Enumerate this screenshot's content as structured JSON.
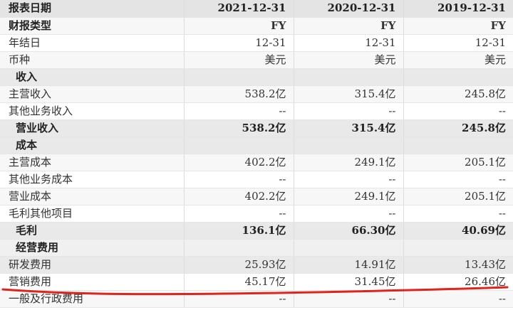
{
  "header": {
    "label": "报表日期",
    "col1": "2021-12-31",
    "col2": "2020-12-31",
    "col3": "2019-12-31"
  },
  "rows": [
    {
      "label": "财报类型",
      "v1": "FY",
      "v2": "FY",
      "v3": "FY"
    },
    {
      "label": "年结日",
      "v1": "12-31",
      "v2": "12-31",
      "v3": "12-31"
    },
    {
      "label": "币种",
      "v1": "美元",
      "v2": "美元",
      "v3": "美元"
    },
    {
      "label": "收入",
      "v1": "",
      "v2": "",
      "v3": ""
    },
    {
      "label": "主营收入",
      "v1": "538.2亿",
      "v2": "315.4亿",
      "v3": "245.8亿"
    },
    {
      "label": "其他业务收入",
      "v1": "--",
      "v2": "--",
      "v3": "--"
    },
    {
      "label": "营业收入",
      "v1": "538.2亿",
      "v2": "315.4亿",
      "v3": "245.8亿"
    },
    {
      "label": "成本",
      "v1": "",
      "v2": "",
      "v3": ""
    },
    {
      "label": "主营成本",
      "v1": "402.2亿",
      "v2": "249.1亿",
      "v3": "205.1亿"
    },
    {
      "label": "其他业务成本",
      "v1": "--",
      "v2": "--",
      "v3": "--"
    },
    {
      "label": "营业成本",
      "v1": "402.2亿",
      "v2": "249.1亿",
      "v3": "205.1亿"
    },
    {
      "label": "毛利其他项目",
      "v1": "--",
      "v2": "--",
      "v3": "--"
    },
    {
      "label": "毛利",
      "v1": "136.1亿",
      "v2": "66.30亿",
      "v3": "40.69亿"
    },
    {
      "label": "经营费用",
      "v1": "",
      "v2": "",
      "v3": ""
    },
    {
      "label": "研发费用",
      "v1": "25.93亿",
      "v2": "14.91亿",
      "v3": "13.43亿"
    },
    {
      "label": "营销费用",
      "v1": "45.17亿",
      "v2": "31.45亿",
      "v3": "26.46亿"
    },
    {
      "label": "一般及行政费用",
      "v1": "--",
      "v2": "--",
      "v3": "--"
    }
  ],
  "colors": {
    "annotation": "#e0231d"
  }
}
